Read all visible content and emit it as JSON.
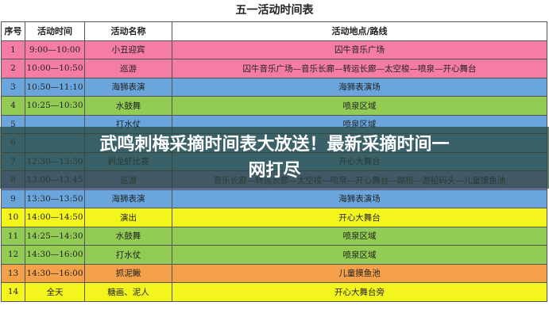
{
  "title": "五一活动时间表",
  "table": {
    "header": [
      "序号",
      "活动时间",
      "活动名称",
      "活动地点/路线"
    ],
    "rows": [
      {
        "num": "1",
        "time": "9:00—10:00",
        "name": "小丑迎宾",
        "place": "囚牛音乐广场"
      },
      {
        "num": "2",
        "time": "10:00—10:50",
        "name": "巡游",
        "place": "囚牛音乐广场—音乐长廊—转运长廊—太空梭—喷泉—开心舞台"
      },
      {
        "num": "3",
        "time": "10:50—11:10",
        "name": "海狮表演",
        "place": "海狮表演场"
      },
      {
        "num": "4",
        "time": "10:25—10:30",
        "name": "水鼓舞",
        "place": "喷泉区域"
      },
      {
        "num": "5",
        "name": "打水仗",
        "place": "喷泉区域"
      },
      {
        "num": "6"
      },
      {
        "num": "7",
        "time": "12:30—13:30",
        "name": "剥龙虾比赛",
        "place": "开心大舞台"
      },
      {
        "num": "8",
        "time": "13:00—13:45",
        "name": "巡游",
        "place": "音乐长廊—转运长廊—太空梭—喷泉—开心舞台—蹦极—游船码头—儿童摸鱼池"
      },
      {
        "num": "9",
        "time": "13:30—13:50",
        "name": "海狮表演",
        "place": "海狮表演场"
      },
      {
        "num": "10",
        "time": "14:00—14:50",
        "name": "演出",
        "place": "开心大舞台"
      },
      {
        "num": "11",
        "time": "14:25—14:30",
        "name": "水鼓舞",
        "place": "喷泉区域"
      },
      {
        "num": "12",
        "time": "14:30—16:00",
        "name": "打水仗",
        "place": "喷泉区域"
      },
      {
        "num": "13",
        "time": "14:30—16:00",
        "name": "抓泥鳅",
        "place": "儿童摸鱼池"
      },
      {
        "num": "14",
        "time": "全天",
        "name": "糖画、泥人",
        "place": "开心大舞台旁"
      }
    ]
  },
  "banner": [
    "武鸣刺梅采摘时间表大放送！最新采摘时间一",
    "网打尽"
  ]
}
